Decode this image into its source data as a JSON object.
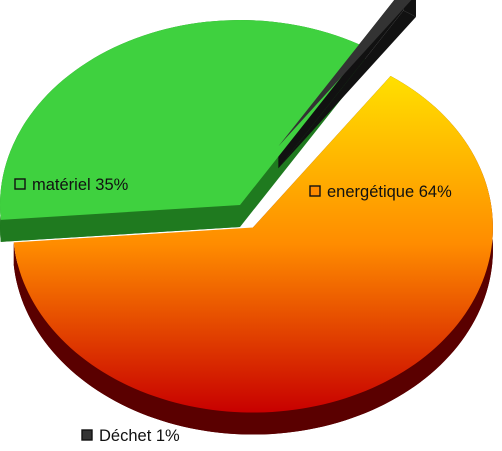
{
  "chart_data": {
    "type": "pie",
    "title": "",
    "legend": "labels-on-slices",
    "slices": [
      {
        "label": "energétique",
        "value": 64,
        "display": "64%",
        "color_top": "#ffe000",
        "color_mid": "#ff8c00",
        "color_bottom": "#c80000",
        "side_color": "#5a0000"
      },
      {
        "label": "matériel",
        "value": 35,
        "display": "35%",
        "color_top": "#3fd13f",
        "color_mid": "#3fd13f",
        "color_bottom": "#3fd13f",
        "side_color": "#1f7a1f"
      },
      {
        "label": "Déchet",
        "value": 1,
        "display": "1%",
        "color_top": "#333333",
        "color_mid": "#333333",
        "color_bottom": "#333333",
        "side_color": "#111111"
      }
    ]
  }
}
